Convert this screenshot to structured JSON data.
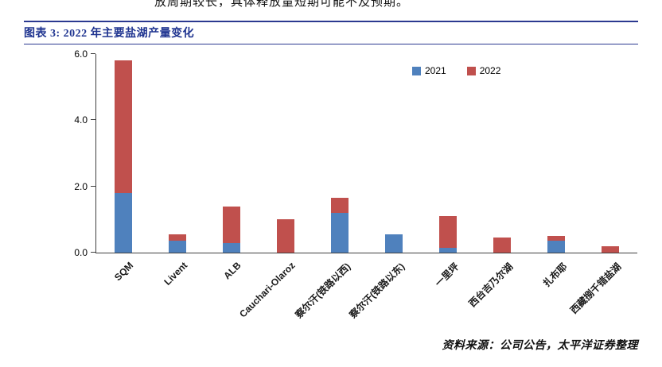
{
  "page": {
    "top_text": "放周期较长，具体释放量短期可能不及预期。",
    "figure_title": "图表 3: 2022 年主要盐湖产量变化",
    "footer": "资料来源：公司公告，太平洋证券整理"
  },
  "colors": {
    "accent_rule_blue": "#2B3990",
    "title_text_blue": "#1F3490",
    "series_2021_blue": "#4F81BD",
    "series_2022_red": "#C0504D",
    "axis_line": "#404040"
  },
  "chart_data": {
    "type": "bar",
    "stacked": true,
    "title": "图表 3: 2022 年主要盐湖产量变化",
    "categories": [
      "SQM",
      "Livent",
      "ALB",
      "Cauchari-Olaroz",
      "察尔汗(铁路以西)",
      "察尔汗(铁路以东)",
      "一里坪",
      "西台吉乃尔湖",
      "扎布耶",
      "西藏捌千错盐湖"
    ],
    "series": [
      {
        "name": "2021",
        "color": "#4F81BD",
        "values": [
          1.8,
          0.35,
          0.3,
          0,
          1.2,
          0.55,
          0.15,
          0,
          0.35,
          0
        ]
      },
      {
        "name": "2022",
        "color": "#C0504D",
        "values": [
          4.0,
          0.2,
          1.1,
          1.0,
          0.45,
          0,
          0.95,
          0.45,
          0.15,
          0.2
        ]
      }
    ],
    "xlabel": "",
    "ylabel": "",
    "ylim": [
      0,
      6
    ],
    "yticks": [
      0.0,
      2.0,
      4.0,
      6.0
    ],
    "grid": false,
    "legend_position": "top-right"
  }
}
